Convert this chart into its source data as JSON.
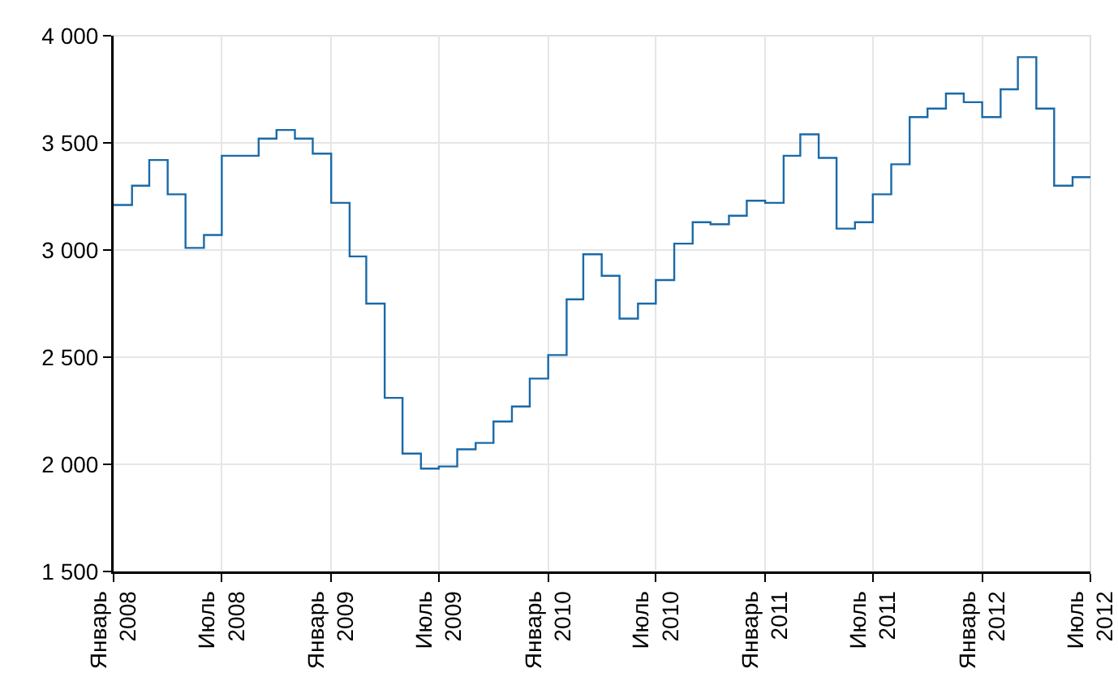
{
  "chart_data": {
    "type": "step",
    "color": "#1a6aa8",
    "grid": true,
    "marker": "none",
    "line_style": "solid",
    "x": [
      "2008-01",
      "2008-02",
      "2008-03",
      "2008-04",
      "2008-05",
      "2008-06",
      "2008-07",
      "2008-08",
      "2008-09",
      "2008-10",
      "2008-11",
      "2008-12",
      "2009-01",
      "2009-02",
      "2009-03",
      "2009-04",
      "2009-05",
      "2009-06",
      "2009-07",
      "2009-08",
      "2009-09",
      "2009-10",
      "2009-11",
      "2009-12",
      "2010-01",
      "2010-02",
      "2010-03",
      "2010-04",
      "2010-05",
      "2010-06",
      "2010-07",
      "2010-08",
      "2010-09",
      "2010-10",
      "2010-11",
      "2010-12",
      "2011-01",
      "2011-02",
      "2011-03",
      "2011-04",
      "2011-05",
      "2011-06",
      "2011-07",
      "2011-08",
      "2011-09",
      "2011-10",
      "2011-11",
      "2011-12",
      "2012-01",
      "2012-02",
      "2012-03",
      "2012-04",
      "2012-05",
      "2012-06",
      "2012-07"
    ],
    "values": [
      3210,
      3300,
      3420,
      3260,
      3010,
      3070,
      3440,
      3440,
      3520,
      3560,
      3520,
      3450,
      3220,
      2970,
      2750,
      2310,
      2050,
      1980,
      1990,
      2070,
      2100,
      2200,
      2270,
      2400,
      2510,
      2770,
      2980,
      2880,
      2680,
      2750,
      2860,
      3030,
      3130,
      3120,
      3160,
      3230,
      3220,
      3440,
      3540,
      3430,
      3100,
      3130,
      3260,
      3400,
      3620,
      3660,
      3730,
      3690,
      3620,
      3750,
      3900,
      3660,
      3300,
      3340,
      3340
    ],
    "xlim": [
      "2008-01",
      "2012-07"
    ],
    "xticks": [
      {
        "value": "2008-01",
        "label": "Январь 2008"
      },
      {
        "value": "2008-07",
        "label": "Июль 2008"
      },
      {
        "value": "2009-01",
        "label": "Январь 2009"
      },
      {
        "value": "2009-07",
        "label": "Июль 2009"
      },
      {
        "value": "2010-01",
        "label": "Январь 2010"
      },
      {
        "value": "2010-07",
        "label": "Июль 2010"
      },
      {
        "value": "2011-01",
        "label": "Январь 2011"
      },
      {
        "value": "2011-07",
        "label": "Июль 2011"
      },
      {
        "value": "2012-01",
        "label": "Январь 2012"
      },
      {
        "value": "2012-07",
        "label": "Июль 2012"
      }
    ],
    "ylim": [
      1500,
      4000
    ],
    "yticks": [
      {
        "value": 1500,
        "label": "1 500"
      },
      {
        "value": 2000,
        "label": "2 000"
      },
      {
        "value": 2500,
        "label": "2 500"
      },
      {
        "value": 3000,
        "label": "3 000"
      },
      {
        "value": 3500,
        "label": "3 500"
      },
      {
        "value": 4000,
        "label": "4 000"
      }
    ]
  }
}
